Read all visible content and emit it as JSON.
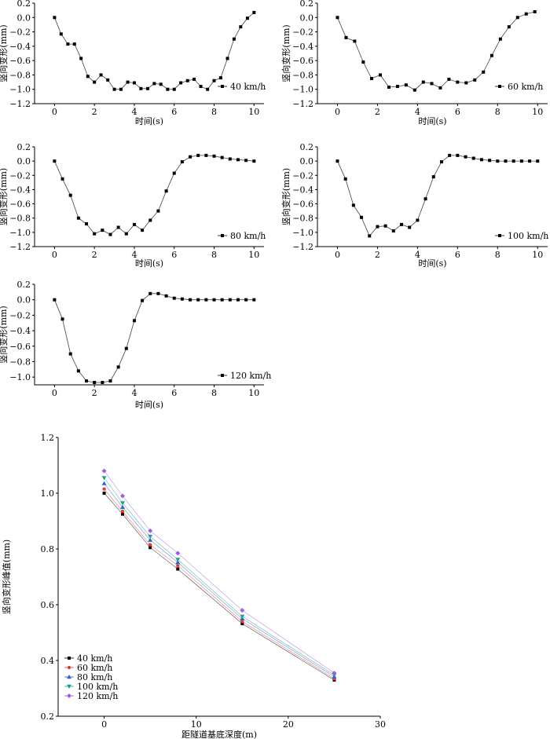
{
  "chart_data": [
    {
      "type": "line",
      "xlabel": "时间(s)",
      "ylabel": "竖向变形(mm)",
      "xlim": [
        -1,
        10.5
      ],
      "ylim": [
        -1.2,
        0.2
      ],
      "xticks": [
        "0",
        "2",
        "4",
        "6",
        "8",
        "10"
      ],
      "yticks": [
        "0.2",
        "0.0",
        "−0.2",
        "−0.4",
        "−0.6",
        "−0.8",
        "−1.0",
        "−1.2"
      ],
      "series": [
        {
          "name": "40 km/h",
          "x": [
            0,
            0.33,
            0.67,
            1.0,
            1.33,
            1.67,
            2.0,
            2.33,
            2.67,
            3.0,
            3.33,
            3.67,
            4.0,
            4.33,
            4.67,
            5.0,
            5.33,
            5.67,
            6.0,
            6.33,
            6.67,
            7.0,
            7.33,
            7.67,
            8.0,
            8.33,
            8.67,
            9.0,
            9.33,
            9.67,
            10.0
          ],
          "y": [
            0.0,
            -0.23,
            -0.37,
            -0.37,
            -0.57,
            -0.82,
            -0.9,
            -0.8,
            -0.87,
            -1.0,
            -1.0,
            -0.9,
            -0.91,
            -0.99,
            -0.99,
            -0.92,
            -0.93,
            -1.0,
            -1.0,
            -0.91,
            -0.88,
            -0.86,
            -0.96,
            -1.0,
            -0.88,
            -0.84,
            -0.57,
            -0.3,
            -0.13,
            -0.01,
            0.07
          ]
        }
      ]
    },
    {
      "type": "line",
      "xlabel": "时间(s)",
      "ylabel": "竖向变形(mm)",
      "xlim": [
        -1,
        10.5
      ],
      "ylim": [
        -1.2,
        0.2
      ],
      "xticks": [
        "0",
        "2",
        "4",
        "6",
        "8",
        "10"
      ],
      "yticks": [
        "0.2",
        "0.0",
        "−0.2",
        "−0.4",
        "−0.6",
        "−0.8",
        "−1.0",
        "−1.2"
      ],
      "series": [
        {
          "name": "60 km/h",
          "x": [
            0,
            0.43,
            0.86,
            1.29,
            1.71,
            2.14,
            2.57,
            3.0,
            3.43,
            3.86,
            4.29,
            4.71,
            5.14,
            5.57,
            6.0,
            6.43,
            6.86,
            7.29,
            7.71,
            8.14,
            8.57,
            9.0,
            9.43,
            9.86
          ],
          "y": [
            0.0,
            -0.28,
            -0.33,
            -0.62,
            -0.85,
            -0.8,
            -0.97,
            -0.96,
            -0.94,
            -1.01,
            -0.9,
            -0.92,
            -0.98,
            -0.86,
            -0.9,
            -0.91,
            -0.87,
            -0.76,
            -0.53,
            -0.3,
            -0.13,
            0.0,
            0.05,
            0.08
          ]
        }
      ]
    },
    {
      "type": "line",
      "xlabel": "时间(s)",
      "ylabel": "竖向变形(mm)",
      "xlim": [
        -1,
        10.5
      ],
      "ylim": [
        -1.2,
        0.2
      ],
      "xticks": [
        "0",
        "2",
        "4",
        "6",
        "8",
        "10"
      ],
      "yticks": [
        "0.2",
        "0.0",
        "−0.2",
        "−0.4",
        "−0.6",
        "−0.8",
        "−1.0",
        "−1.2"
      ],
      "series": [
        {
          "name": "80 km/h",
          "x": [
            0,
            0.4,
            0.8,
            1.2,
            1.6,
            2.0,
            2.4,
            2.8,
            3.2,
            3.6,
            4.0,
            4.4,
            4.8,
            5.2,
            5.6,
            6.0,
            6.4,
            6.8,
            7.2,
            7.6,
            8.0,
            8.4,
            8.8,
            9.2,
            9.6,
            10.0
          ],
          "y": [
            0.0,
            -0.25,
            -0.48,
            -0.8,
            -0.88,
            -1.02,
            -0.97,
            -1.03,
            -0.93,
            -1.02,
            -0.89,
            -0.97,
            -0.83,
            -0.7,
            -0.42,
            -0.17,
            -0.01,
            0.06,
            0.08,
            0.08,
            0.07,
            0.05,
            0.03,
            0.02,
            0.01,
            0.0
          ]
        }
      ]
    },
    {
      "type": "line",
      "xlabel": "时间(s)",
      "ylabel": "竖向变形(mm)",
      "xlim": [
        -1,
        10.5
      ],
      "ylim": [
        -1.2,
        0.2
      ],
      "xticks": [
        "0",
        "2",
        "4",
        "6",
        "8",
        "10"
      ],
      "yticks": [
        "0.2",
        "0.0",
        "−0.2",
        "−0.4",
        "−0.6",
        "−0.8",
        "−1.0",
        "−1.2"
      ],
      "series": [
        {
          "name": "100 km/h",
          "x": [
            0,
            0.4,
            0.8,
            1.2,
            1.6,
            2.0,
            2.4,
            2.8,
            3.2,
            3.6,
            4.0,
            4.4,
            4.8,
            5.2,
            5.6,
            6.0,
            6.4,
            6.8,
            7.2,
            7.6,
            8.0,
            8.4,
            8.8,
            9.2,
            9.6,
            10.0
          ],
          "y": [
            0.0,
            -0.25,
            -0.62,
            -0.79,
            -1.05,
            -0.92,
            -0.91,
            -0.98,
            -0.89,
            -0.93,
            -0.83,
            -0.53,
            -0.22,
            -0.01,
            0.08,
            0.08,
            0.06,
            0.04,
            0.02,
            0.01,
            0.0,
            0.0,
            0.0,
            0.0,
            0.0,
            0.0
          ]
        }
      ]
    },
    {
      "type": "line",
      "xlabel": "时间(s)",
      "ylabel": "竖向变形(mm)",
      "xlim": [
        -1,
        10.5
      ],
      "ylim": [
        -1.1,
        0.2
      ],
      "xticks": [
        "0",
        "2",
        "4",
        "6",
        "8",
        "10"
      ],
      "yticks": [
        "0.2",
        "0.0",
        "−0.2",
        "−0.4",
        "−0.6",
        "−0.8",
        "−1.0"
      ],
      "series": [
        {
          "name": "120 km/h",
          "x": [
            0,
            0.4,
            0.8,
            1.2,
            1.6,
            2.0,
            2.4,
            2.8,
            3.2,
            3.6,
            4.0,
            4.4,
            4.8,
            5.2,
            5.6,
            6.0,
            6.4,
            6.8,
            7.2,
            7.6,
            8.0,
            8.4,
            8.8,
            9.2,
            9.6,
            10.0
          ],
          "y": [
            0.0,
            -0.25,
            -0.7,
            -0.92,
            -1.05,
            -1.07,
            -1.07,
            -1.05,
            -0.87,
            -0.63,
            -0.27,
            -0.01,
            0.08,
            0.08,
            0.05,
            0.02,
            0.01,
            0.0,
            0.0,
            0.0,
            0.0,
            0.0,
            0.0,
            0.0,
            0.0,
            0.0
          ]
        }
      ]
    },
    {
      "type": "line",
      "xlabel": "距隧道基底深度(m)",
      "ylabel": "竖向变形峰值(mm)",
      "xlim": [
        -5,
        30
      ],
      "ylim": [
        0.2,
        1.2
      ],
      "xticks": [
        "0",
        "10",
        "20",
        "30"
      ],
      "yticks": [
        "1.2",
        "1.0",
        "0.8",
        "0.6",
        "0.4",
        "0.2"
      ],
      "legend": "bottom-left",
      "series": [
        {
          "name": "40 km/h",
          "color": "#000000",
          "marker": "square",
          "x": [
            0,
            2,
            5,
            8,
            15,
            25
          ],
          "y": [
            1.0,
            0.925,
            0.805,
            0.728,
            0.532,
            0.33
          ]
        },
        {
          "name": "60 km/h",
          "color": "#e0403a",
          "marker": "circle",
          "x": [
            0,
            2,
            5,
            8,
            15,
            25
          ],
          "y": [
            1.015,
            0.935,
            0.815,
            0.74,
            0.54,
            0.335
          ]
        },
        {
          "name": "80 km/h",
          "color": "#3060d0",
          "marker": "triangle-up",
          "x": [
            0,
            2,
            5,
            8,
            15,
            25
          ],
          "y": [
            1.035,
            0.95,
            0.832,
            0.752,
            0.55,
            0.342
          ]
        },
        {
          "name": "100 km/h",
          "color": "#20a090",
          "marker": "triangle-down",
          "x": [
            0,
            2,
            5,
            8,
            15,
            25
          ],
          "y": [
            1.055,
            0.965,
            0.845,
            0.762,
            0.558,
            0.348
          ]
        },
        {
          "name": "120 km/h",
          "color": "#9a60e0",
          "marker": "diamond",
          "x": [
            0,
            2,
            5,
            8,
            15,
            25
          ],
          "y": [
            1.08,
            0.99,
            0.865,
            0.785,
            0.58,
            0.355
          ]
        }
      ]
    }
  ]
}
